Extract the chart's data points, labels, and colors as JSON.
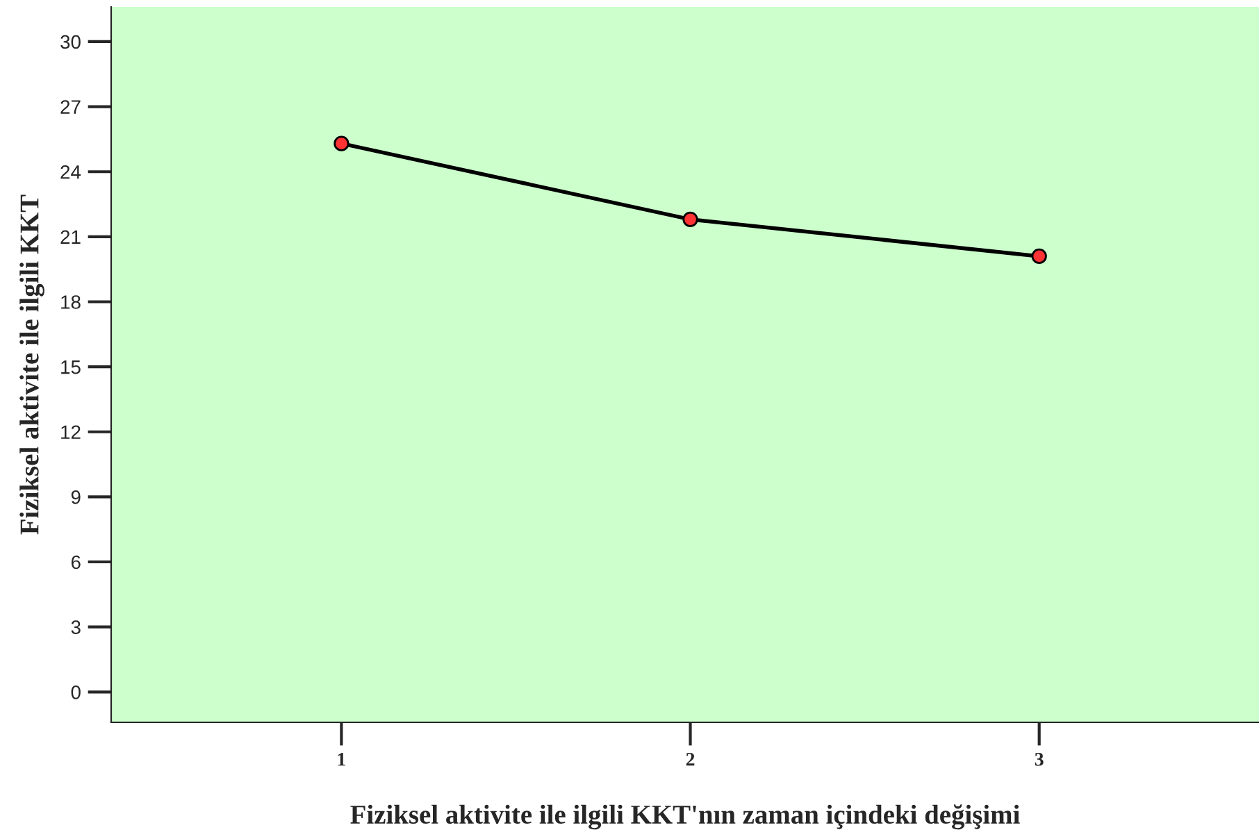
{
  "chart_data": {
    "type": "line",
    "xlabel": "Fiziksel aktivite ile ilgili KKT'nın zaman içindeki değişimi",
    "ylabel": "Fiziksel aktivite ile ilgili KKT",
    "categories": [
      "1",
      "2",
      "3"
    ],
    "series": [
      {
        "color": "#000000",
        "values": [
          25.3,
          21.8,
          20.1
        ]
      }
    ],
    "ylim": [
      -1.4,
      31.6
    ],
    "yticks": [
      0,
      3,
      6,
      9,
      12,
      15,
      18,
      21,
      24,
      27,
      30
    ],
    "marker": "circle",
    "line_style": "solid",
    "grid": false,
    "legend": false
  }
}
